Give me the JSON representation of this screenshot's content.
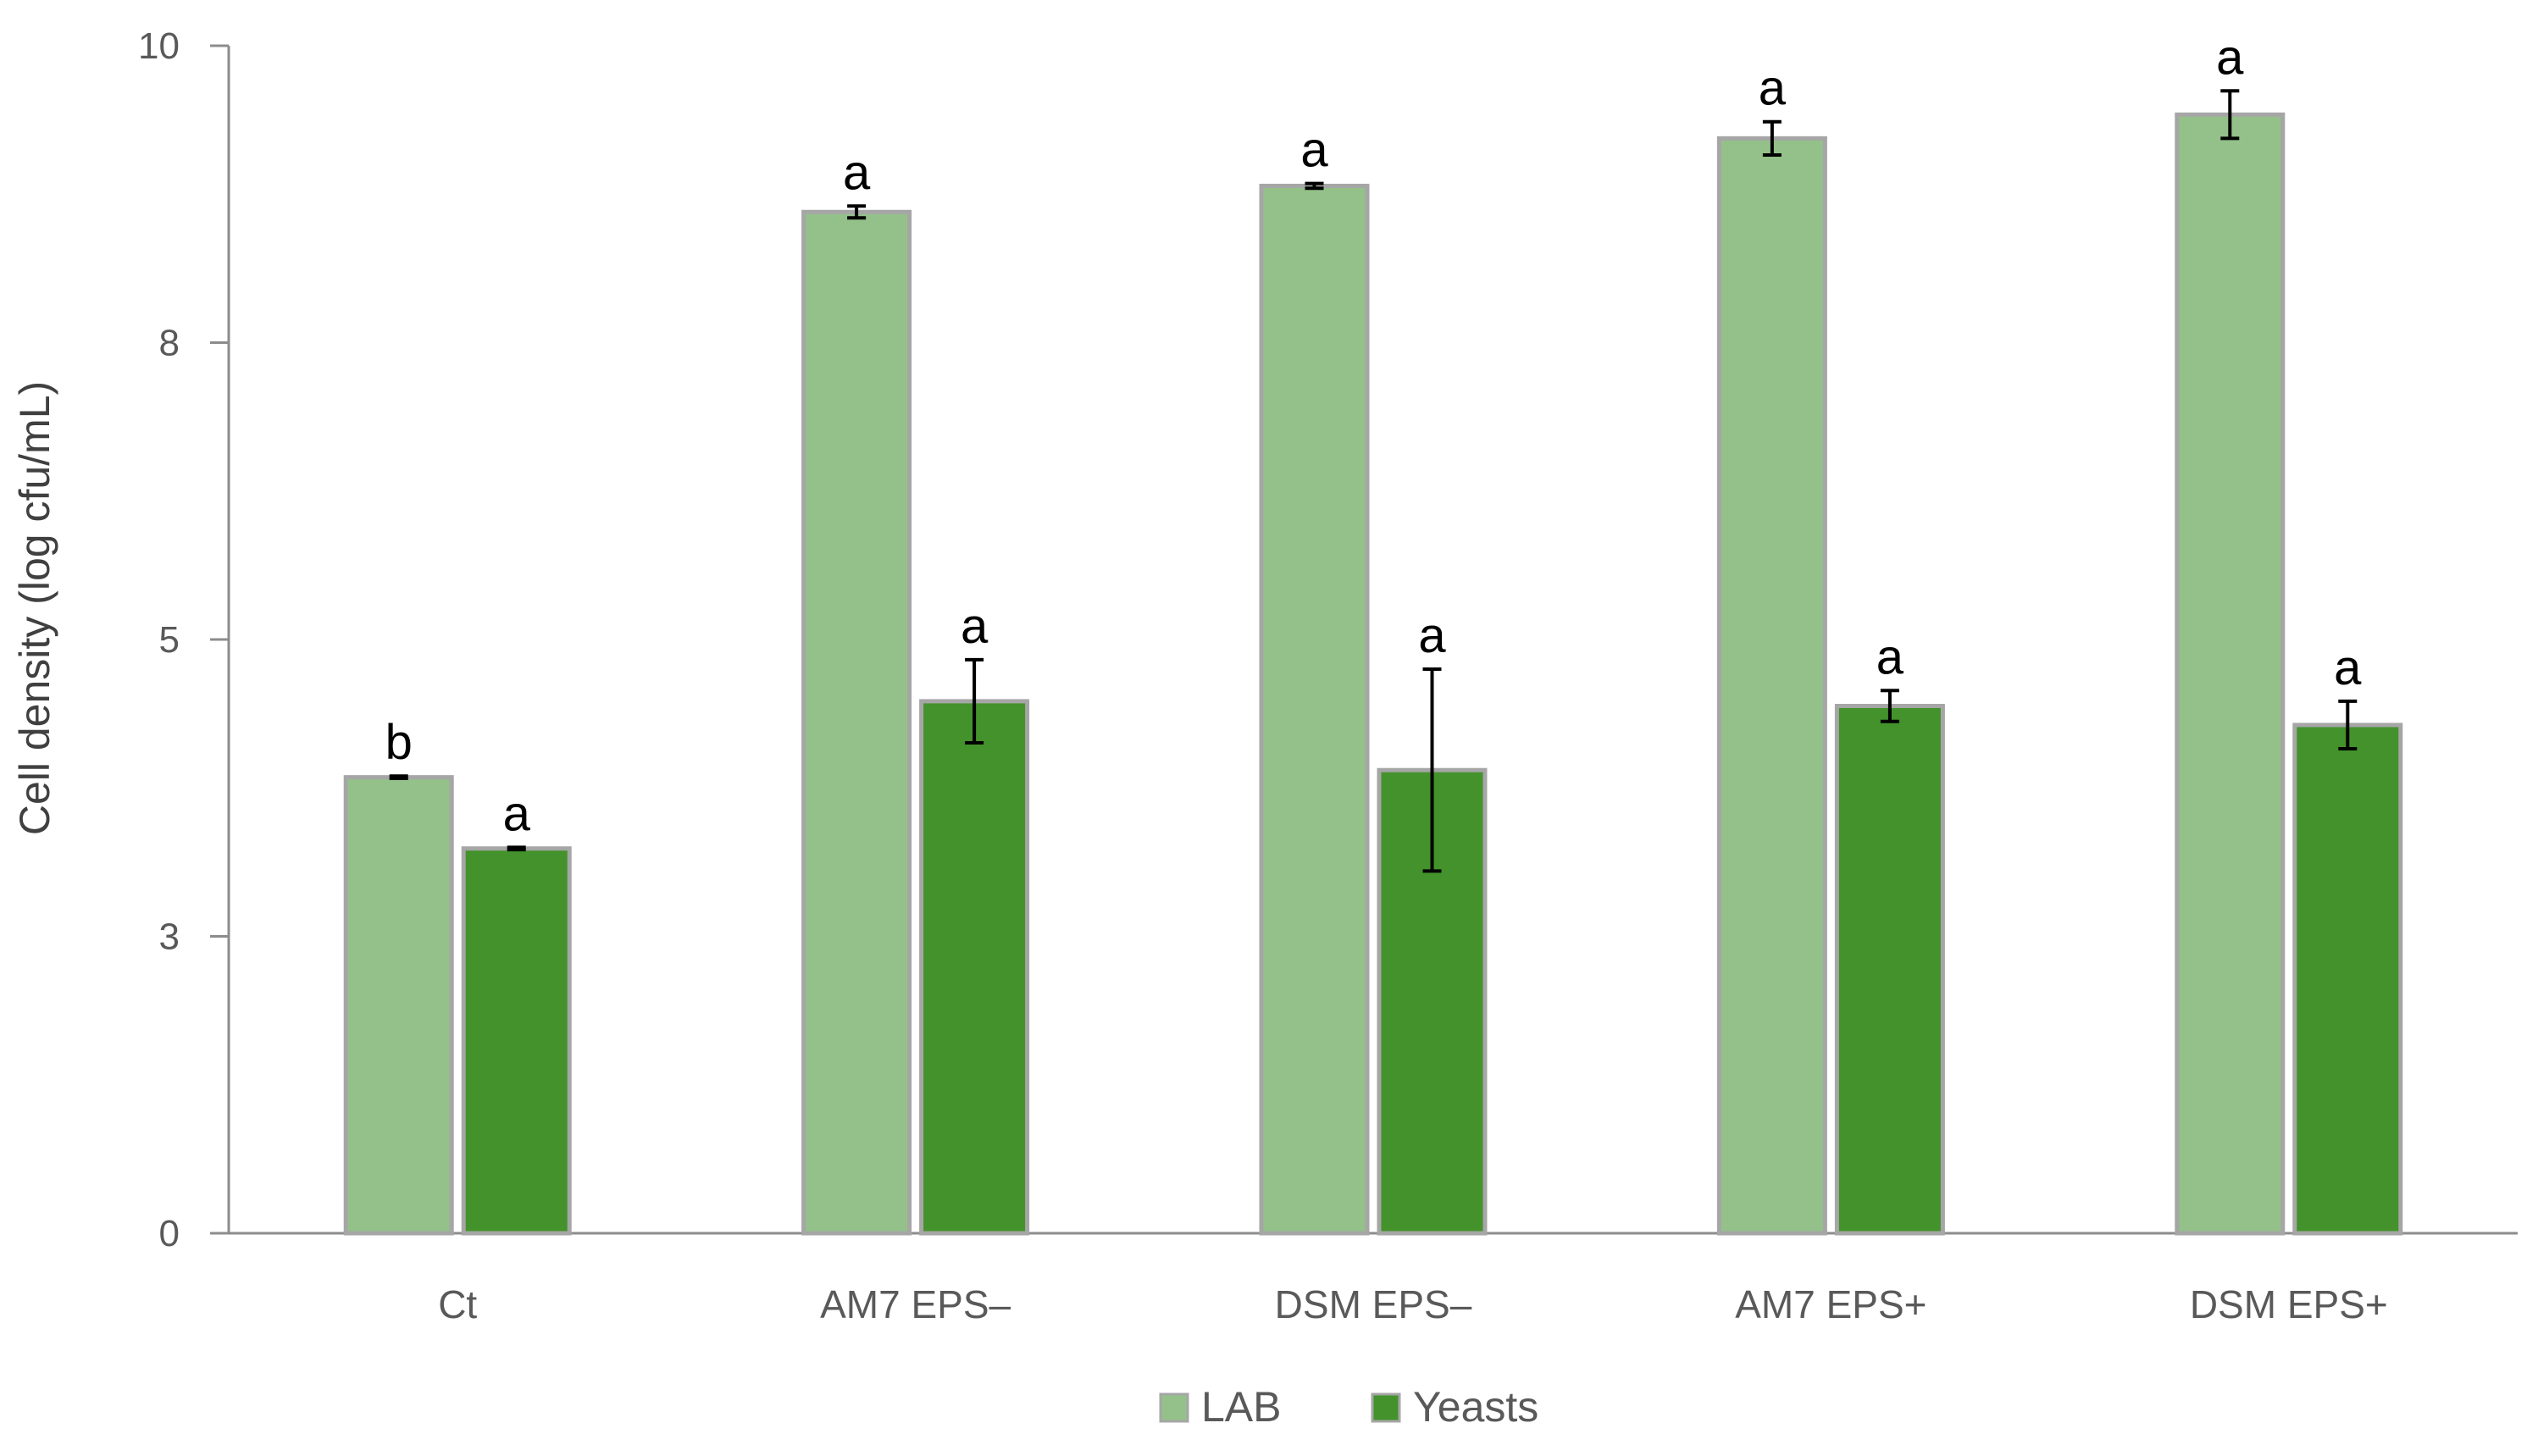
{
  "chart_data": {
    "type": "bar",
    "ylabel": "Cell density (log cfu/mL)",
    "xlabel": "",
    "ylim": [
      0,
      10
    ],
    "yticks": [
      0,
      2.5,
      5,
      7.5,
      10
    ],
    "ytick_labels": [
      "0",
      "3",
      "5",
      "8",
      "10"
    ],
    "grid": false,
    "legend_position": "bottom-center",
    "categories": [
      "Ct",
      "AM7 EPS–",
      "DSM EPS–",
      "AM7 EPS+",
      "DSM EPS+"
    ],
    "series": [
      {
        "name": "LAB",
        "color": "#93c189",
        "values": [
          3.84,
          8.6,
          8.82,
          9.22,
          9.42
        ],
        "errors": [
          0.01,
          0.05,
          0.02,
          0.14,
          0.2
        ],
        "significance": [
          "b",
          "a",
          "a",
          "a",
          "a"
        ]
      },
      {
        "name": "Yeasts",
        "color": "#43922b",
        "values": [
          3.24,
          4.48,
          3.9,
          4.44,
          4.28
        ],
        "errors": [
          0.01,
          0.35,
          0.85,
          0.13,
          0.2
        ],
        "significance": [
          "a",
          "a",
          "a",
          "a",
          "a"
        ]
      }
    ]
  }
}
